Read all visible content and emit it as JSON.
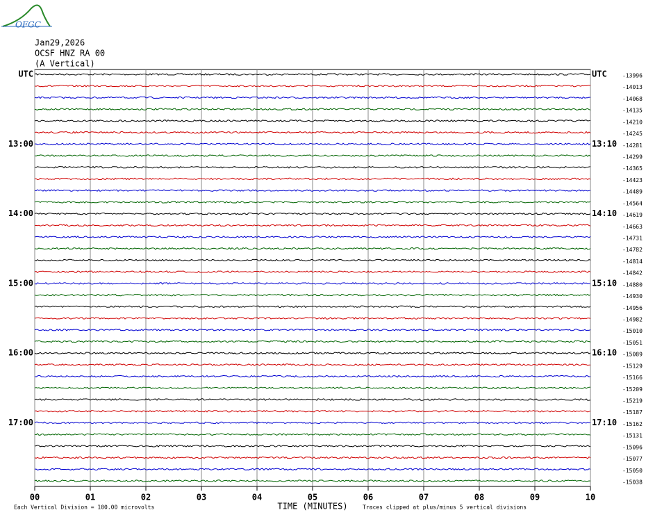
{
  "header": {
    "logo": "OFGC",
    "date": "Jan29,2026",
    "station": "OCSF HNZ RA 00",
    "component": "(A Vertical)"
  },
  "chart_data": {
    "type": "helicorder",
    "xlabel": "TIME (MINUTES)",
    "xlim": [
      0,
      10
    ],
    "xticks": [
      {
        "value": 0,
        "label": "00"
      },
      {
        "value": 1,
        "label": "01"
      },
      {
        "value": 2,
        "label": "02"
      },
      {
        "value": 3,
        "label": "03"
      },
      {
        "value": 4,
        "label": "04"
      },
      {
        "value": 5,
        "label": "05"
      },
      {
        "value": 6,
        "label": "06"
      },
      {
        "value": 7,
        "label": "07"
      },
      {
        "value": 8,
        "label": "08"
      },
      {
        "value": 9,
        "label": "09"
      },
      {
        "value": 10,
        "label": "10"
      }
    ],
    "colors": [
      "#000000",
      "#d00000",
      "#0000d0",
      "#006400"
    ],
    "left_labels": [
      "UTC",
      null,
      null,
      null,
      null,
      null,
      "13:00",
      null,
      null,
      null,
      null,
      null,
      "14:00",
      null,
      null,
      null,
      null,
      null,
      "15:00",
      null,
      null,
      null,
      null,
      null,
      "16:00",
      null,
      null,
      null,
      null,
      null,
      "17:00",
      null,
      null,
      null,
      null,
      null
    ],
    "right_labels": [
      "UTC",
      null,
      null,
      null,
      null,
      null,
      "13:10",
      null,
      null,
      null,
      null,
      null,
      "14:10",
      null,
      null,
      null,
      null,
      null,
      "15:10",
      null,
      null,
      null,
      null,
      null,
      "16:10",
      null,
      null,
      null,
      null,
      null,
      "17:10",
      null,
      null,
      null,
      null,
      null
    ],
    "offsets": [
      -13996,
      -14013,
      -14068,
      -14135,
      -14210,
      -14245,
      -14281,
      -14299,
      -14365,
      -14423,
      -14489,
      -14564,
      -14619,
      -14663,
      -14731,
      -14782,
      -14814,
      -14842,
      -14880,
      -14930,
      -14956,
      -14982,
      -15010,
      -15051,
      -15089,
      -15129,
      -15166,
      -15209,
      -15219,
      -15187,
      -15162,
      -15131,
      -15096,
      -15077,
      -15050,
      -15038
    ],
    "scale_note": "Each Vertical Division =  100.00 microvolts",
    "clip_note": "Traces clipped at plus/minus 5 vertical divisions"
  }
}
